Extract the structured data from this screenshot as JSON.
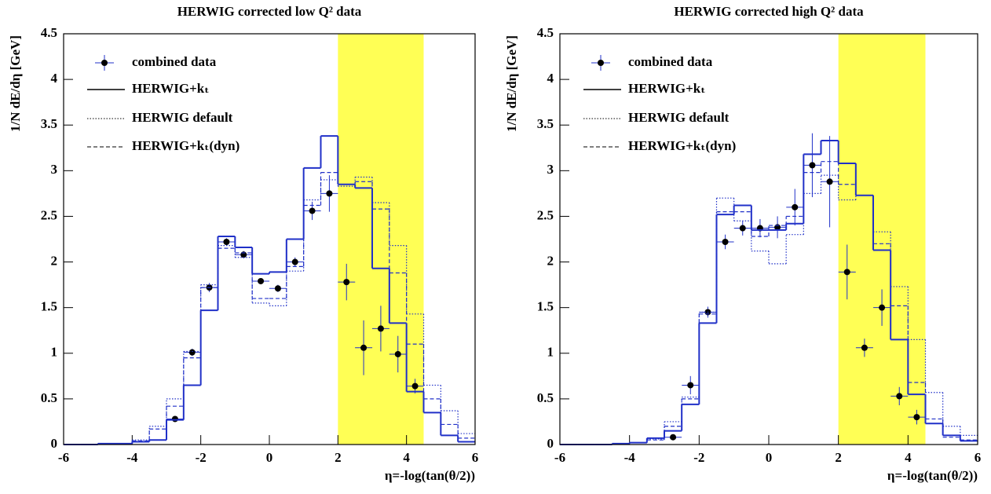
{
  "chart_data": [
    {
      "type": "histogram",
      "title": "HERWIG corrected low Q² data",
      "x_label": "η=-log(tan(θ/2))",
      "y_label": "1/N dE/dη  [GeV]",
      "xlim": [
        -6,
        6
      ],
      "ylim": [
        0,
        4.5
      ],
      "xticks": [
        -6,
        -4,
        -2,
        0,
        2,
        4,
        6
      ],
      "yticks": [
        0,
        0.5,
        1,
        1.5,
        2,
        2.5,
        3,
        3.5,
        4,
        4.5
      ],
      "band": [
        2,
        4.5
      ],
      "band_color": "#ffff55",
      "bins": [
        -6,
        -5.5,
        -5,
        -4.5,
        -4,
        -3.5,
        -3,
        -2.5,
        -2,
        -1.5,
        -1,
        -0.5,
        0,
        0.5,
        1,
        1.5,
        2,
        2.5,
        3,
        3.5,
        4,
        4.5,
        5,
        5.5,
        6
      ],
      "series": [
        {
          "name": "combined data",
          "style": "points",
          "color": "#000000",
          "x": [
            -2.75,
            -2.25,
            -1.75,
            -1.25,
            -0.75,
            -0.25,
            0.25,
            0.75,
            1.25,
            1.75,
            2.25,
            2.75,
            3.25,
            3.75,
            4.25
          ],
          "values": [
            0.28,
            1.01,
            1.72,
            2.22,
            2.08,
            1.79,
            1.71,
            2.0,
            2.56,
            2.75,
            1.78,
            1.06,
            1.27,
            0.99,
            0.64
          ],
          "errors": [
            0.03,
            0.04,
            0.05,
            0.04,
            0.04,
            0.03,
            0.04,
            0.05,
            0.1,
            0.2,
            0.2,
            0.3,
            0.25,
            0.2,
            0.08
          ]
        },
        {
          "name": "HERWIG+kₜ",
          "style": "solid",
          "color": "#2030c8",
          "values": [
            0,
            0,
            0.01,
            0.01,
            0.03,
            0.05,
            0.27,
            0.65,
            1.47,
            2.28,
            2.16,
            1.87,
            1.89,
            2.25,
            3.03,
            3.38,
            2.85,
            2.81,
            1.93,
            1.33,
            0.58,
            0.35,
            0.1,
            0.03
          ]
        },
        {
          "name": "HERWIG default",
          "style": "dotted",
          "color": "#2030c8",
          "values": [
            0,
            0,
            0.01,
            0.01,
            0.05,
            0.2,
            0.5,
            1.02,
            1.75,
            2.18,
            2.05,
            1.55,
            1.52,
            1.9,
            2.68,
            2.9,
            2.83,
            2.93,
            2.65,
            2.18,
            1.43,
            0.65,
            0.37,
            0.12
          ]
        },
        {
          "name": "HERWIG+kₜ(dyn)",
          "style": "dashed",
          "color": "#2030c8",
          "values": [
            0,
            0,
            0.01,
            0.01,
            0.04,
            0.17,
            0.42,
            0.95,
            1.72,
            2.15,
            2.1,
            1.6,
            1.6,
            1.95,
            2.62,
            2.98,
            2.85,
            2.88,
            2.58,
            1.88,
            1.1,
            0.5,
            0.22,
            0.07
          ]
        }
      ]
    },
    {
      "type": "histogram",
      "title": "HERWIG corrected high Q² data",
      "x_label": "η=-log(tan(θ/2))",
      "y_label": "1/N dE/dη  [GeV]",
      "xlim": [
        -6,
        6
      ],
      "ylim": [
        0,
        4.5
      ],
      "xticks": [
        -6,
        -4,
        -2,
        0,
        2,
        4,
        6
      ],
      "yticks": [
        0,
        0.5,
        1,
        1.5,
        2,
        2.5,
        3,
        3.5,
        4,
        4.5
      ],
      "band": [
        2,
        4.5
      ],
      "band_color": "#ffff55",
      "bins": [
        -6,
        -5.5,
        -5,
        -4.5,
        -4,
        -3.5,
        -3,
        -2.5,
        -2,
        -1.5,
        -1,
        -0.5,
        0,
        0.5,
        1,
        1.5,
        2,
        2.5,
        3,
        3.5,
        4,
        4.5,
        5,
        5.5,
        6
      ],
      "series": [
        {
          "name": "combined data",
          "style": "points",
          "color": "#000000",
          "x": [
            -2.75,
            -2.25,
            -1.75,
            -1.25,
            -0.75,
            -0.25,
            0.25,
            0.75,
            1.25,
            1.75,
            2.25,
            2.75,
            3.25,
            3.75,
            4.25
          ],
          "values": [
            0.08,
            0.65,
            1.45,
            2.22,
            2.37,
            2.37,
            2.38,
            2.6,
            3.06,
            2.88,
            1.89,
            1.06,
            1.5,
            0.53,
            0.3
          ],
          "errors": [
            0.03,
            0.1,
            0.06,
            0.08,
            0.08,
            0.1,
            0.12,
            0.2,
            0.35,
            0.5,
            0.3,
            0.1,
            0.2,
            0.1,
            0.08
          ]
        },
        {
          "name": "HERWIG+kₜ",
          "style": "solid",
          "color": "#2030c8",
          "values": [
            0,
            0,
            0,
            0.01,
            0.02,
            0.07,
            0.15,
            0.44,
            1.33,
            2.52,
            2.62,
            2.35,
            2.35,
            2.42,
            3.18,
            3.33,
            3.08,
            2.73,
            2.13,
            1.15,
            0.55,
            0.23,
            0.1,
            0.04
          ]
        },
        {
          "name": "HERWIG default",
          "style": "dotted",
          "color": "#2030c8",
          "values": [
            0,
            0,
            0,
            0.01,
            0.02,
            0.06,
            0.25,
            0.52,
            1.45,
            2.7,
            2.45,
            2.12,
            1.98,
            2.3,
            2.75,
            2.95,
            2.68,
            2.73,
            2.33,
            1.73,
            1.15,
            0.57,
            0.2,
            0.1
          ]
        },
        {
          "name": "HERWIG+kₜ(dyn)",
          "style": "dashed",
          "color": "#2030c8",
          "values": [
            0,
            0,
            0,
            0.01,
            0.02,
            0.05,
            0.2,
            0.5,
            1.43,
            2.55,
            2.55,
            2.28,
            2.4,
            2.5,
            2.98,
            3.1,
            2.85,
            2.73,
            2.2,
            1.52,
            0.68,
            0.28,
            0.08,
            0.05
          ]
        }
      ]
    }
  ]
}
